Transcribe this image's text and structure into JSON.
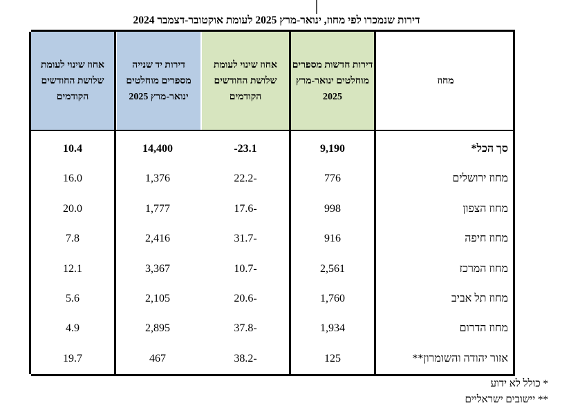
{
  "title": "דירות שנמכרו לפי מחוז, ינואר-מרץ 2025 לעומת אוקטובר-דצמבר 2024",
  "headers": {
    "district": "מחוז",
    "new_abs": "דירות חדשות מספרים מוחלטים ינואר-מרץ 2025",
    "new_pct": "אחוז שינוי לעומת שלושת החודשים הקודמים",
    "used_abs": "דירות יד שנייה מספרים מוחלטים ינואר-מרץ 2025",
    "used_pct": "אחוז שינוי לעומת שלושת החודשים הקודמים"
  },
  "colors": {
    "header_blue": "#b7cce4",
    "header_green": "#d7e5bf"
  },
  "rows": [
    {
      "district": "סך הכל*",
      "new_abs": "9,190",
      "new_pct": "-23.1",
      "used_abs": "14,400",
      "used_pct": "10.4"
    },
    {
      "district": "מחוז ירושלים",
      "new_abs": "776",
      "new_pct": "22.2-",
      "used_abs": "1,376",
      "used_pct": "16.0"
    },
    {
      "district": "מחוז הצפון",
      "new_abs": "998",
      "new_pct": "17.6-",
      "used_abs": "1,777",
      "used_pct": "20.0"
    },
    {
      "district": "מחוז חיפה",
      "new_abs": "916",
      "new_pct": "31.7-",
      "used_abs": "2,416",
      "used_pct": "7.8"
    },
    {
      "district": "מחוז המרכז",
      "new_abs": "2,561",
      "new_pct": "10.7-",
      "used_abs": "3,367",
      "used_pct": "12.1"
    },
    {
      "district": "מחוז תל אביב",
      "new_abs": "1,760",
      "new_pct": "20.6-",
      "used_abs": "2,105",
      "used_pct": "5.6"
    },
    {
      "district": "מחוז הדרום",
      "new_abs": "1,934",
      "new_pct": "37.8-",
      "used_abs": "2,895",
      "used_pct": "4.9"
    },
    {
      "district": "אזור יהודה והשומרון**",
      "new_abs": "125",
      "new_pct": "38.2-",
      "used_abs": "467",
      "used_pct": "19.7"
    }
  ],
  "footnotes": [
    "* כולל לא ידוע",
    "** יישובים ישראליים"
  ]
}
